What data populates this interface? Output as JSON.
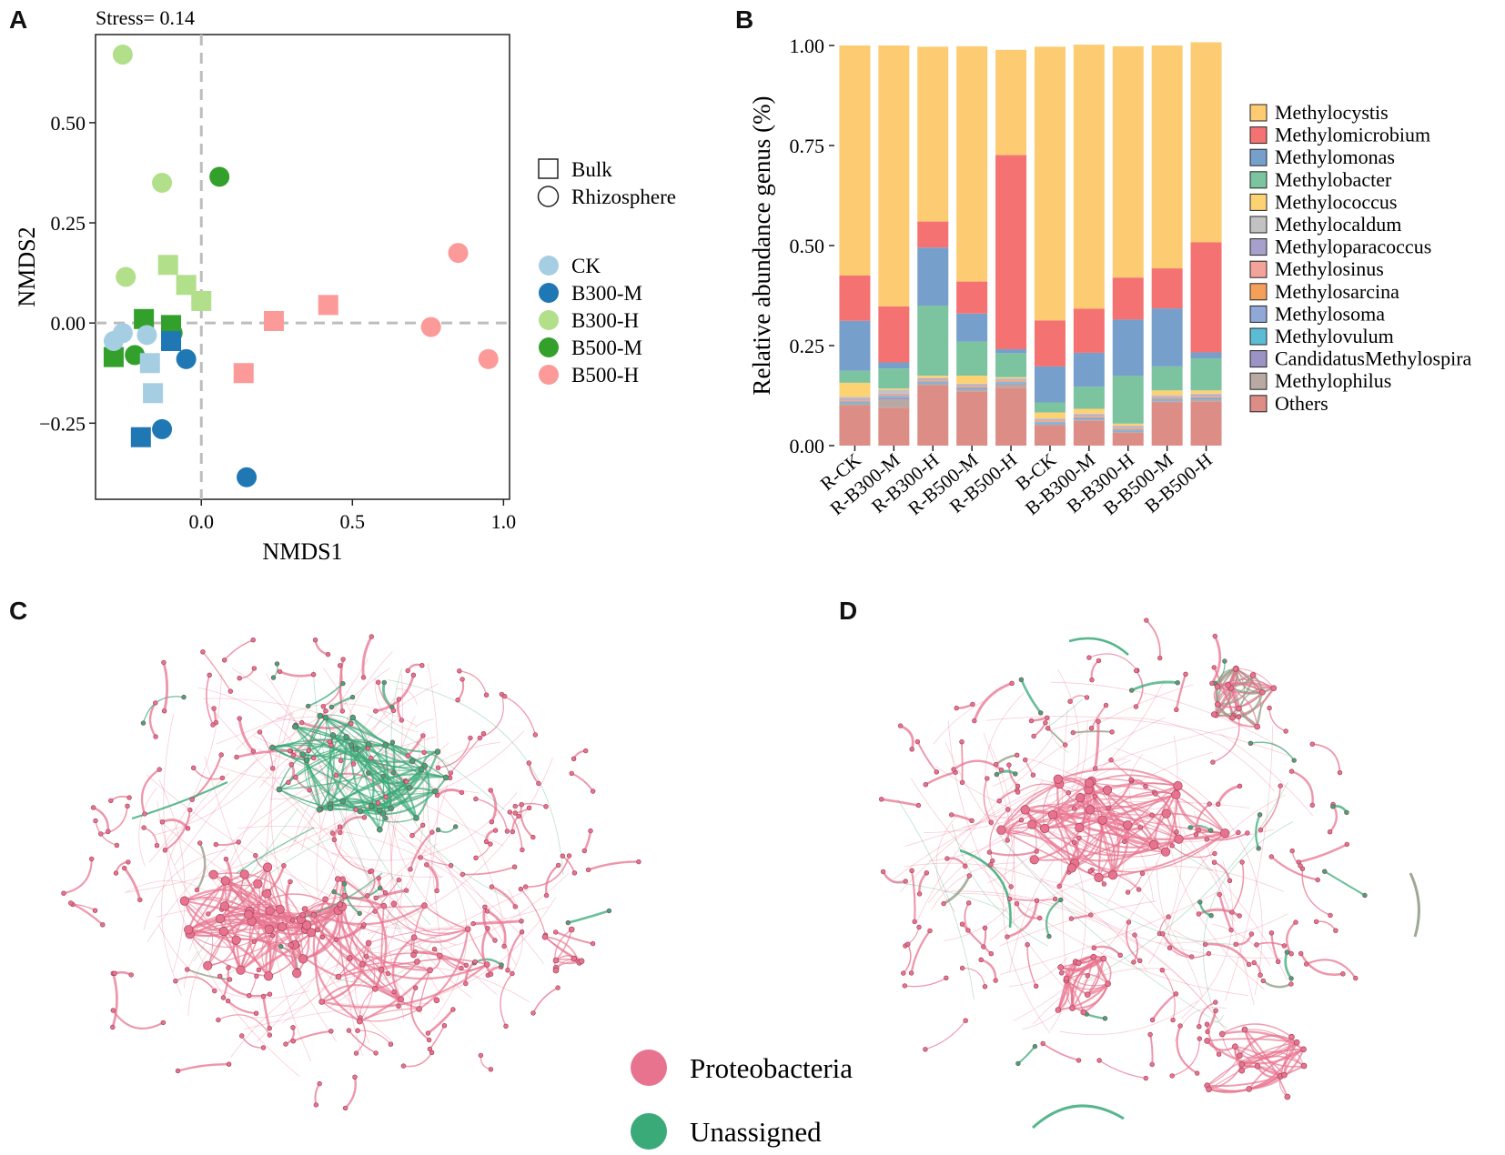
{
  "panels": {
    "a": "A",
    "b": "B",
    "c": "C",
    "d": "D"
  },
  "colors": {
    "CK": "#a6cee3",
    "B300-M": "#1f78b4",
    "B300-H": "#b2df8a",
    "B500-M": "#33a02c",
    "B500-H": "#fb9a99",
    "proteobacteria": "#e8738f",
    "unassigned": "#3aaa78",
    "mixed_edge": "#8c9a80"
  },
  "chart_data": [
    {
      "type": "scatter",
      "id": "nmds",
      "title": "Stress= 0.14",
      "xlabel": "NMDS1",
      "ylabel": "NMDS2",
      "xlim": [
        -0.35,
        1.02
      ],
      "ylim": [
        -0.44,
        0.72
      ],
      "xticks": [
        {
          "v": 0.0,
          "label": "0.0"
        },
        {
          "v": 0.5,
          "label": "0.5"
        },
        {
          "v": 1.0,
          "label": "1.0"
        }
      ],
      "yticks": [
        {
          "v": 0.5,
          "label": "0.50"
        },
        {
          "v": 0.25,
          "label": "0.25"
        },
        {
          "v": 0.0,
          "label": "0.00"
        },
        {
          "v": -0.25,
          "label": "−0.25"
        }
      ],
      "shape_legend": [
        "Bulk",
        "Rhizosphere"
      ],
      "color_legend": [
        "CK",
        "B300-M",
        "B300-H",
        "B500-M",
        "B500-H"
      ],
      "points": [
        {
          "x": -0.26,
          "y": 0.67,
          "g": "B300-H",
          "s": "circle"
        },
        {
          "x": -0.13,
          "y": 0.35,
          "g": "B300-H",
          "s": "circle"
        },
        {
          "x": -0.25,
          "y": 0.115,
          "g": "B300-H",
          "s": "circle"
        },
        {
          "x": 0.06,
          "y": 0.365,
          "g": "B500-M",
          "s": "circle"
        },
        {
          "x": -0.11,
          "y": 0.145,
          "g": "B300-H",
          "s": "square"
        },
        {
          "x": -0.05,
          "y": 0.095,
          "g": "B300-H",
          "s": "square"
        },
        {
          "x": 0.0,
          "y": 0.055,
          "g": "B300-H",
          "s": "square"
        },
        {
          "x": -0.19,
          "y": 0.01,
          "g": "B500-M",
          "s": "square"
        },
        {
          "x": -0.1,
          "y": -0.005,
          "g": "B500-M",
          "s": "square"
        },
        {
          "x": -0.095,
          "y": -0.025,
          "g": "B500-M",
          "s": "circle"
        },
        {
          "x": -0.29,
          "y": -0.085,
          "g": "B500-M",
          "s": "square"
        },
        {
          "x": -0.22,
          "y": -0.08,
          "g": "B500-M",
          "s": "circle"
        },
        {
          "x": -0.26,
          "y": -0.025,
          "g": "CK",
          "s": "circle"
        },
        {
          "x": -0.29,
          "y": -0.045,
          "g": "CK",
          "s": "circle"
        },
        {
          "x": -0.18,
          "y": -0.03,
          "g": "CK",
          "s": "circle"
        },
        {
          "x": -0.17,
          "y": -0.1,
          "g": "CK",
          "s": "square"
        },
        {
          "x": -0.16,
          "y": -0.175,
          "g": "CK",
          "s": "square"
        },
        {
          "x": -0.1,
          "y": -0.045,
          "g": "B300-M",
          "s": "square"
        },
        {
          "x": -0.05,
          "y": -0.09,
          "g": "B300-M",
          "s": "circle"
        },
        {
          "x": -0.2,
          "y": -0.285,
          "g": "B300-M",
          "s": "square"
        },
        {
          "x": -0.13,
          "y": -0.265,
          "g": "B300-M",
          "s": "circle"
        },
        {
          "x": 0.15,
          "y": -0.385,
          "g": "B300-M",
          "s": "circle"
        },
        {
          "x": 0.24,
          "y": 0.005,
          "g": "B500-H",
          "s": "square"
        },
        {
          "x": 0.42,
          "y": 0.045,
          "g": "B500-H",
          "s": "square"
        },
        {
          "x": 0.14,
          "y": -0.125,
          "g": "B500-H",
          "s": "square"
        },
        {
          "x": 0.85,
          "y": 0.175,
          "g": "B500-H",
          "s": "circle"
        },
        {
          "x": 0.76,
          "y": -0.01,
          "g": "B500-H",
          "s": "circle"
        },
        {
          "x": 0.95,
          "y": -0.09,
          "g": "B500-H",
          "s": "circle"
        }
      ]
    },
    {
      "type": "bar",
      "id": "abundance",
      "stacked": true,
      "ylabel": "Relative abundance genus (%)",
      "ylim": [
        0,
        1
      ],
      "yticks": [
        {
          "v": 0.0,
          "label": "0.00"
        },
        {
          "v": 0.25,
          "label": "0.25"
        },
        {
          "v": 0.5,
          "label": "0.50"
        },
        {
          "v": 0.75,
          "label": "0.75"
        },
        {
          "v": 1.0,
          "label": "1.00"
        }
      ],
      "categories": [
        "R-CK",
        "R-B300-M",
        "R-B300-H",
        "R-B500-M",
        "R-B500-H",
        "B-CK",
        "B-B300-M",
        "B-B300-H",
        "B-B500-M",
        "B-B500-H"
      ],
      "series": [
        {
          "name": "Others",
          "color": "#dc8d86",
          "values": [
            0.1,
            0.095,
            0.15,
            0.135,
            0.145,
            0.05,
            0.062,
            0.032,
            0.108,
            0.11
          ]
        },
        {
          "name": "Methylophilus",
          "color": "#b8a9a3",
          "values": [
            0.005,
            0.02,
            0.005,
            0.005,
            0.008,
            0.003,
            0.003,
            0.003,
            0.003,
            0.005
          ]
        },
        {
          "name": "CandidatusMethylospira",
          "color": "#9b93c6",
          "values": [
            0.002,
            0.005,
            0.002,
            0.002,
            0.002,
            0.002,
            0.002,
            0.002,
            0.002,
            0.002
          ]
        },
        {
          "name": "Methylovulum",
          "color": "#5cbcd6",
          "values": [
            0.002,
            0.002,
            0.002,
            0.002,
            0.002,
            0.002,
            0.002,
            0.002,
            0.002,
            0.002
          ]
        },
        {
          "name": "Methylosoma",
          "color": "#8fa8d6",
          "values": [
            0.002,
            0.002,
            0.002,
            0.002,
            0.002,
            0.002,
            0.002,
            0.002,
            0.002,
            0.002
          ]
        },
        {
          "name": "Methylosarcina",
          "color": "#f5a05a",
          "values": [
            0.002,
            0.002,
            0.002,
            0.002,
            0.002,
            0.002,
            0.002,
            0.002,
            0.002,
            0.002
          ]
        },
        {
          "name": "Methylosinus",
          "color": "#f4a39a",
          "values": [
            0.002,
            0.002,
            0.002,
            0.002,
            0.002,
            0.002,
            0.002,
            0.002,
            0.002,
            0.002
          ]
        },
        {
          "name": "Methyloparacoccus",
          "color": "#a8a0cc",
          "values": [
            0.002,
            0.002,
            0.002,
            0.002,
            0.002,
            0.002,
            0.002,
            0.002,
            0.002,
            0.002
          ]
        },
        {
          "name": "Methylocaldum",
          "color": "#c2c2c2",
          "values": [
            0.005,
            0.01,
            0.003,
            0.003,
            0.003,
            0.003,
            0.003,
            0.003,
            0.003,
            0.003
          ]
        },
        {
          "name": "Methylococcus",
          "color": "#fdd273",
          "values": [
            0.035,
            0.003,
            0.005,
            0.02,
            0.003,
            0.015,
            0.012,
            0.005,
            0.012,
            0.008
          ]
        },
        {
          "name": "Methylobacter",
          "color": "#7cc4a0",
          "values": [
            0.03,
            0.05,
            0.175,
            0.085,
            0.06,
            0.025,
            0.055,
            0.12,
            0.06,
            0.08
          ]
        },
        {
          "name": "Methylomonas",
          "color": "#779fcc",
          "values": [
            0.125,
            0.015,
            0.145,
            0.07,
            0.01,
            0.09,
            0.085,
            0.14,
            0.145,
            0.015
          ]
        },
        {
          "name": "Methylomicrobium",
          "color": "#f47272",
          "values": [
            0.113,
            0.14,
            0.065,
            0.08,
            0.485,
            0.115,
            0.11,
            0.105,
            0.1,
            0.275
          ]
        },
        {
          "name": "Methylocystis",
          "color": "#fdcb72",
          "values": [
            0.575,
            0.652,
            0.437,
            0.588,
            0.263,
            0.684,
            0.66,
            0.578,
            0.557,
            0.5
          ]
        }
      ],
      "legend": [
        "Methylocystis",
        "Methylomicrobium",
        "Methylomonas",
        "Methylobacter",
        "Methylococcus",
        "Methylocaldum",
        "Methyloparacoccus",
        "Methylosinus",
        "Methylosarcina",
        "Methylosoma",
        "Methylovulum",
        "CandidatusMethylospira",
        "Methylophilus",
        "Others"
      ]
    }
  ],
  "network_legend": {
    "proteobacteria": "Proteobacteria",
    "unassigned": "Unassigned"
  }
}
